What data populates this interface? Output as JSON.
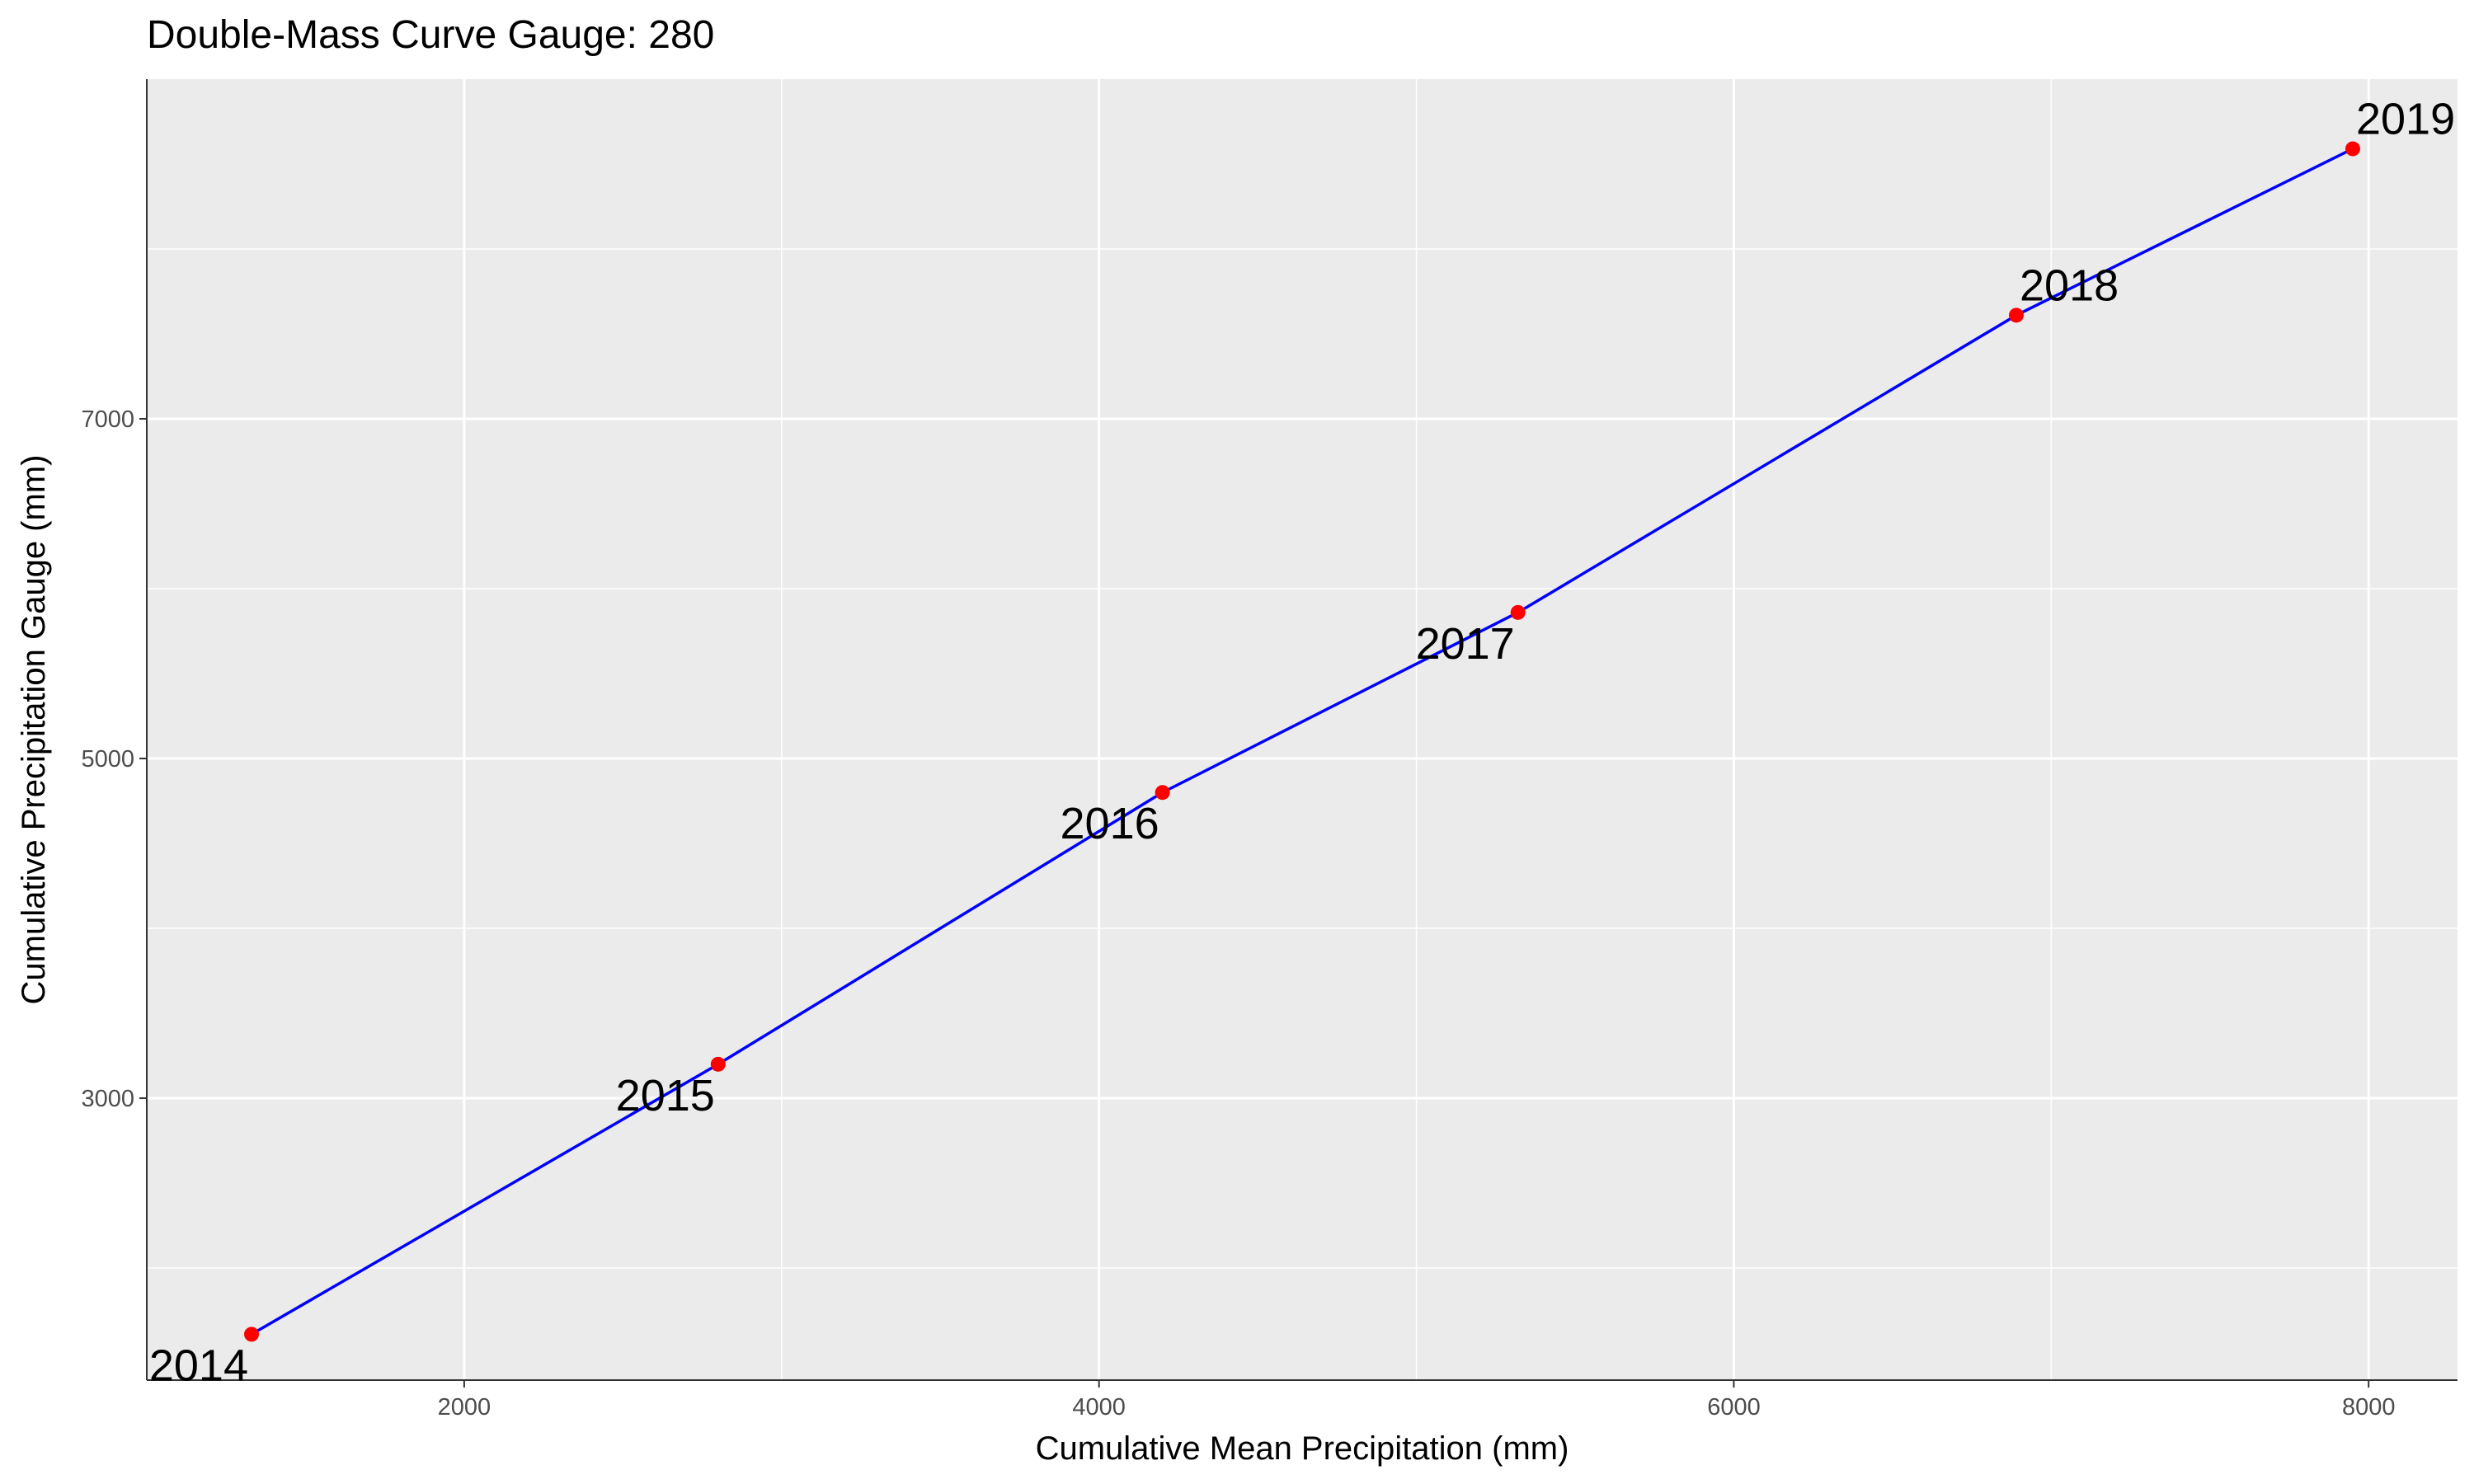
{
  "chart_data": {
    "type": "line",
    "title": "Double-Mass Curve Gauge: 280",
    "xlabel": "Cumulative Mean Precipitation (mm)",
    "ylabel": "Cumulative Precipitation Gauge (mm)",
    "xlim": [
      1000,
      8280
    ],
    "ylim": [
      1340,
      9000
    ],
    "x_ticks": [
      2000,
      4000,
      6000,
      8000
    ],
    "y_ticks": [
      3000,
      5000,
      7000
    ],
    "x_minor": [
      1000,
      3000,
      5000,
      7000
    ],
    "y_minor": [
      2000,
      4000,
      6000,
      8000
    ],
    "grid": true,
    "legend": "none",
    "series": [
      {
        "line_color": "#0000ff",
        "point_color": "#ff0000",
        "points": [
          {
            "x": 1330,
            "y": 1610,
            "label": "2014"
          },
          {
            "x": 2800,
            "y": 3200,
            "label": "2015"
          },
          {
            "x": 4200,
            "y": 4800,
            "label": "2016"
          },
          {
            "x": 5320,
            "y": 5860,
            "label": "2017"
          },
          {
            "x": 6890,
            "y": 7610,
            "label": "2018"
          },
          {
            "x": 7950,
            "y": 8590,
            "label": "2019"
          }
        ]
      }
    ],
    "panel_background": "#ebebeb",
    "grid_color": "#ffffff"
  }
}
